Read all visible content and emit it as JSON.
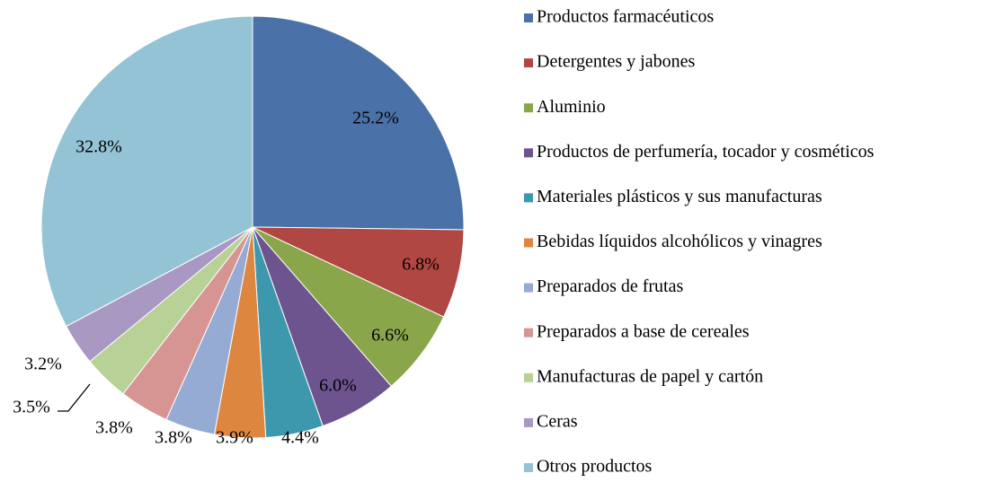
{
  "chart_data": {
    "type": "pie",
    "categories": [
      "Productos farmacéuticos",
      "Detergentes y jabones",
      "Aluminio",
      "Productos de perfumería, tocador y cosméticos",
      "Materiales plásticos y sus manufacturas",
      "Bebidas líquidos alcohólicos y vinagres",
      "Preparados de frutas",
      "Preparados a base de cereales",
      "Manufacturas de papel y cartón",
      "Ceras",
      "Otros productos"
    ],
    "values": [
      25.2,
      6.8,
      6.6,
      6.0,
      4.4,
      3.9,
      3.8,
      3.8,
      3.5,
      3.2,
      32.8
    ],
    "value_labels": [
      "25.2%",
      "6.8%",
      "6.6%",
      "6.0%",
      "4.4%",
      "3.9%",
      "3.8%",
      "3.8%",
      "3.5%",
      "3.2%",
      "32.8%"
    ],
    "colors": [
      "#4a72a8",
      "#b04742",
      "#8aa64b",
      "#6d548f",
      "#3e98ad",
      "#dd8640",
      "#95abd4",
      "#d69593",
      "#b8d196",
      "#a898c2",
      "#93c3d5"
    ],
    "legend": "right"
  }
}
